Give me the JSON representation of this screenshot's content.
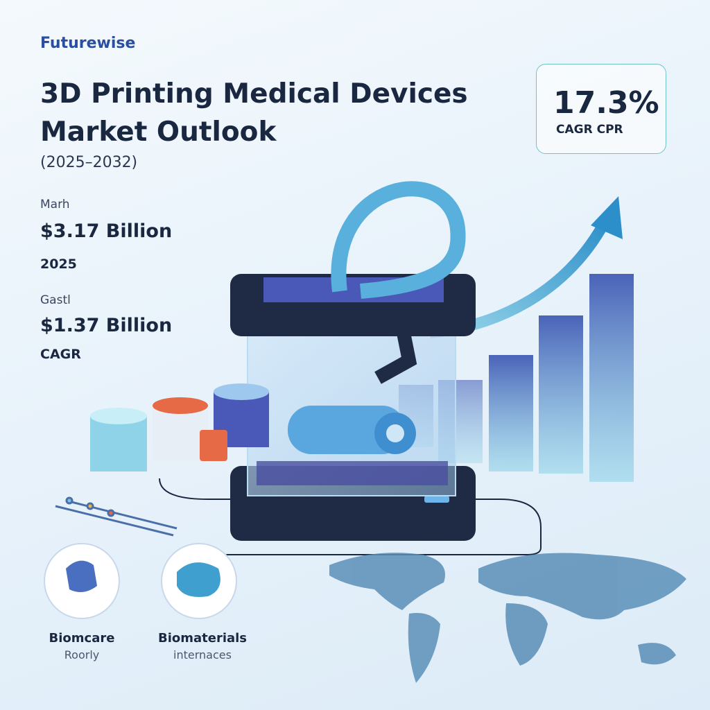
{
  "brand": "Futurewise",
  "header": {
    "title_lines": [
      "3D Printing Medical Devices",
      "Market Outlook"
    ],
    "period": "(2025–2032)"
  },
  "highlight": {
    "value": "17.3%",
    "label": "CAGR CPR"
  },
  "stats": [
    {
      "label": "Marh",
      "value": "$3.17 Billion",
      "note": "2025"
    },
    {
      "label": "Gastl",
      "value": "$1.37 Billion",
      "note": "CAGR"
    }
  ],
  "icons": [
    {
      "title": "Biomcare",
      "subtitle": "Roorly"
    },
    {
      "title": "Biomaterials",
      "subtitle": "internaces"
    }
  ]
}
